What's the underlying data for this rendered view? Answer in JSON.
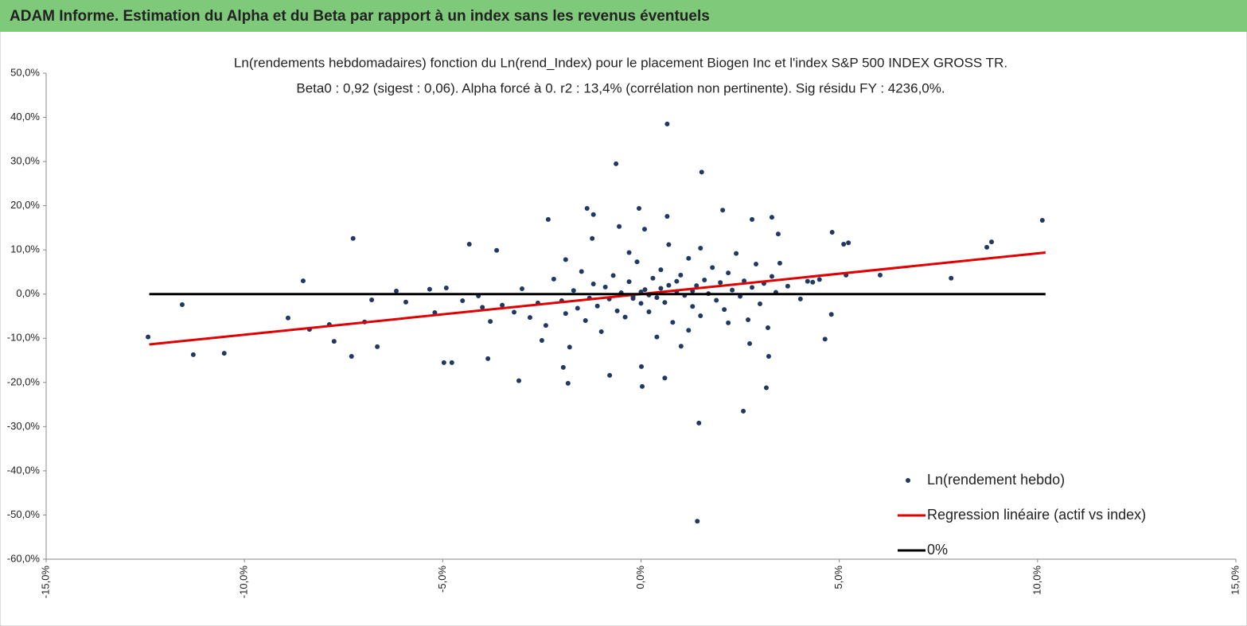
{
  "header": {
    "title": "ADAM Informe. Estimation du Alpha et du Beta par rapport à un index sans les revenus éventuels"
  },
  "chart_data": {
    "type": "scatter",
    "title": "Ln(rendements hebdomadaires) fonction du Ln(rend_Index) pour le placement Biogen Inc et l'index S&P 500 INDEX GROSS TR.",
    "subtitle": "Beta0 : 0,92 (sigest : 0,06). Alpha forcé à 0. r2 : 13,4% (corrélation non pertinente). Sig résidu FY : 4236,0%.",
    "xlim": [
      -15,
      15
    ],
    "ylim": [
      -60,
      50
    ],
    "xticks": [
      {
        "value": -15,
        "label": "-15,0%"
      },
      {
        "value": -10,
        "label": "-10,0%"
      },
      {
        "value": -5,
        "label": "-5,0%"
      },
      {
        "value": 0,
        "label": "0,0%"
      },
      {
        "value": 5,
        "label": "5,0%"
      },
      {
        "value": 10,
        "label": "10,0%"
      },
      {
        "value": 15,
        "label": "15,0%"
      }
    ],
    "yticks": [
      {
        "value": -60,
        "label": "-60,0%"
      },
      {
        "value": -50,
        "label": "-50,0%"
      },
      {
        "value": -40,
        "label": "-40,0%"
      },
      {
        "value": -30,
        "label": "-30,0%"
      },
      {
        "value": -20,
        "label": "-20,0%"
      },
      {
        "value": -10,
        "label": "-10,0%"
      },
      {
        "value": 0,
        "label": "0,0%"
      },
      {
        "value": 10,
        "label": "10,0%"
      },
      {
        "value": 20,
        "label": "20,0%"
      },
      {
        "value": 30,
        "label": "30,0%"
      },
      {
        "value": 40,
        "label": "40,0%"
      },
      {
        "value": 50,
        "label": "50,0%"
      }
    ],
    "grid": false,
    "legend": "lower right",
    "series": [
      {
        "name": "Ln(rendement hebdo)",
        "color": "#1f3864",
        "kind": "points",
        "x": [
          -12.43,
          -11.57,
          -11.29,
          -10.51,
          -8.52,
          -8.9,
          -8.36,
          -7.86,
          -7.74,
          -7.3,
          -7.26,
          -6.79,
          -6.65,
          -6.97,
          -6.17,
          -5.93,
          -5.33,
          -4.97,
          -4.77,
          -4.91,
          -4.33,
          -3.64,
          -3.86,
          -3.08,
          -2.34,
          -1.96,
          -1.84,
          -1.36,
          -1.23,
          -1.2,
          -0.79,
          -0.63,
          -0.55,
          -0.05,
          0.01,
          0.03,
          0.09,
          0.66,
          0.66,
          0.6,
          1.01,
          1.42,
          1.46,
          1.53,
          2.06,
          2.58,
          2.74,
          2.8,
          3.16,
          3.22,
          3.3,
          3.46,
          4.64,
          4.8,
          4.82,
          5.11,
          5.23,
          5.17,
          6.03,
          7.82,
          8.72,
          8.84,
          10.12,
          4.02,
          4.33,
          -3.5,
          -3.2,
          -3.0,
          -2.8,
          -2.6,
          -2.4,
          -2.2,
          -2.0,
          -1.9,
          -1.7,
          -1.6,
          -1.5,
          -1.4,
          -1.3,
          -1.2,
          -1.1,
          -1.0,
          -0.9,
          -0.8,
          -0.7,
          -0.6,
          -0.5,
          -0.4,
          -0.3,
          -0.2,
          -0.1,
          0.0,
          0.1,
          0.2,
          0.3,
          0.4,
          0.5,
          0.6,
          0.7,
          0.8,
          0.9,
          1.0,
          1.1,
          1.2,
          1.3,
          1.4,
          1.5,
          1.6,
          1.7,
          1.8,
          1.9,
          2.0,
          2.1,
          2.2,
          2.3,
          2.4,
          2.5,
          2.6,
          2.7,
          2.8,
          2.9,
          3.0,
          3.1,
          3.2,
          3.3,
          3.4,
          3.5,
          -4.0,
          -4.5,
          -3.8,
          -2.5,
          -1.8,
          0.4,
          1.2,
          2.2,
          -0.3,
          0.7,
          1.5,
          -1.9,
          3.7,
          4.2,
          4.5,
          -5.2,
          -4.1,
          0.0,
          0.2,
          0.5,
          -0.2,
          0.9,
          1.3
        ],
        "values": [
          -9.7,
          -2.4,
          -13.7,
          -13.4,
          3.0,
          -5.4,
          -8.0,
          -6.9,
          -10.7,
          -14.1,
          12.6,
          -1.3,
          -11.9,
          -6.3,
          0.7,
          -1.8,
          1.1,
          -15.5,
          -15.5,
          1.4,
          11.3,
          9.9,
          -14.6,
          -19.6,
          16.9,
          -16.6,
          -20.2,
          19.4,
          12.6,
          18.0,
          -18.4,
          29.5,
          15.3,
          19.4,
          -16.4,
          -20.9,
          14.7,
          38.5,
          17.6,
          -19.0,
          -11.8,
          -51.4,
          -29.2,
          27.6,
          19.0,
          -26.5,
          -11.2,
          16.9,
          -21.2,
          -14.1,
          17.4,
          13.6,
          -10.2,
          -4.6,
          14.0,
          11.3,
          11.6,
          4.3,
          4.3,
          3.6,
          10.6,
          11.8,
          16.7,
          -1.1,
          2.7,
          -2.5,
          -4.1,
          1.2,
          -5.3,
          -2.0,
          -7.1,
          3.4,
          -1.5,
          -4.4,
          0.8,
          -3.2,
          5.1,
          -6.0,
          -0.9,
          2.3,
          -2.7,
          -8.5,
          1.6,
          -1.1,
          4.2,
          -3.8,
          0.3,
          -5.2,
          2.8,
          -0.6,
          7.3,
          -2.1,
          1.0,
          -4.0,
          3.6,
          -0.8,
          5.5,
          -1.9,
          2.0,
          -6.4,
          0.6,
          4.3,
          -0.3,
          8.1,
          -2.8,
          1.9,
          -4.9,
          3.2,
          0.1,
          6.0,
          -1.4,
          2.6,
          -3.5,
          4.8,
          0.9,
          9.2,
          -0.5,
          3.0,
          -5.8,
          1.5,
          6.8,
          -2.2,
          2.4,
          -7.6,
          4.0,
          0.4,
          7.0,
          -3.0,
          -1.5,
          -6.2,
          -10.5,
          -12.0,
          -9.7,
          -8.2,
          -6.5,
          9.4,
          11.2,
          10.4,
          7.8,
          1.8,
          2.9,
          3.3,
          -4.2,
          -0.4,
          0.5,
          -0.2,
          1.3,
          -1.0,
          2.9,
          0.7
        ]
      },
      {
        "name": "Regression linéaire (actif vs index)",
        "color": "#e00000",
        "kind": "line",
        "x": [
          -12.4,
          10.2
        ],
        "values": [
          -11.4,
          9.4
        ]
      },
      {
        "name": "0%",
        "color": "#000000",
        "kind": "line",
        "x": [
          -12.4,
          10.2
        ],
        "values": [
          0,
          0
        ]
      }
    ]
  }
}
